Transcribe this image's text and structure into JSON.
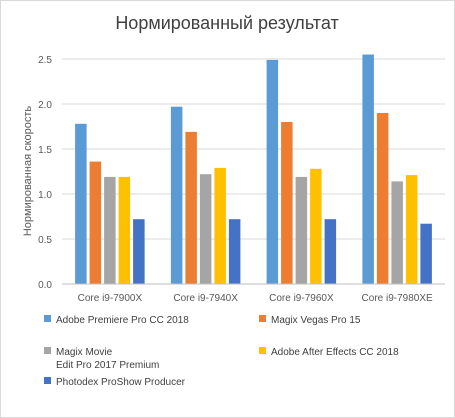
{
  "chart_data": {
    "type": "bar",
    "title": "Нормированный результат",
    "xlabel": "",
    "ylabel": "Нормированная скорость",
    "ylim": [
      0,
      2.5
    ],
    "yticks": [
      "0.0",
      "0.5",
      "1.0",
      "1.5",
      "2.0",
      "2.5"
    ],
    "grid": true,
    "legend_position": "bottom",
    "categories": [
      "Core i9-7900X",
      "Core i9-7940X",
      "Core i9-7960X",
      "Core i9-7980XE"
    ],
    "series": [
      {
        "name": "Adobe Premiere Pro CC 2018",
        "color": "#5b9bd5",
        "values": [
          1.78,
          1.97,
          2.49,
          2.55
        ]
      },
      {
        "name": "Magix Vegas Pro 15",
        "color": "#ed7d31",
        "values": [
          1.36,
          1.69,
          1.8,
          1.9
        ]
      },
      {
        "name": "Magix Movie Edit Pro 2017 Premium",
        "color": "#a5a5a5",
        "values": [
          1.19,
          1.22,
          1.19,
          1.14
        ]
      },
      {
        "name": "Adobe After Effects CC 2018",
        "color": "#ffc000",
        "values": [
          1.19,
          1.29,
          1.28,
          1.21
        ]
      },
      {
        "name": "Photodex ProShow Producer",
        "color": "#4472c4",
        "values": [
          0.72,
          0.72,
          0.72,
          0.67
        ]
      }
    ]
  }
}
